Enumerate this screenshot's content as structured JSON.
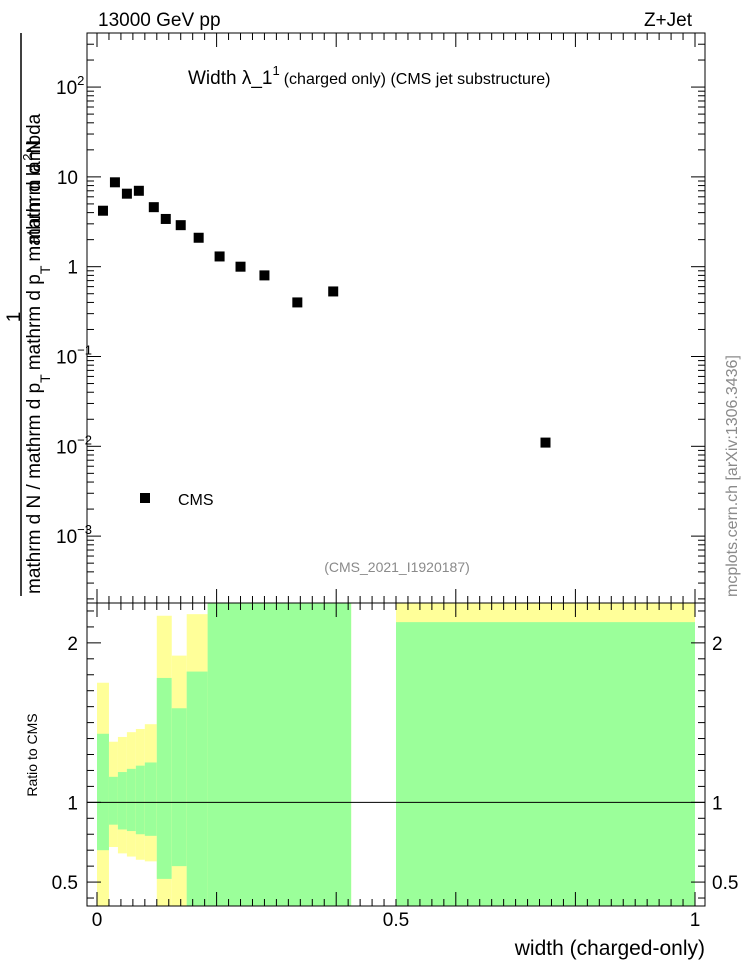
{
  "header": {
    "left": "13000 GeV pp",
    "right": "Z+Jet"
  },
  "chart_data": {
    "type": "scatter",
    "title": "Width λ_1¹ (charged only) (CMS jet substructure)",
    "title_main": "Width λ_1",
    "title_sup": "1",
    "title_rest": "(charged only) (CMS jet substructure)",
    "analysis_id": "(CMS_2021_I1920187)",
    "side_label": "mcplots.cern.ch [arXiv:1306.3436]",
    "ylabel_parts": {
      "one": "1",
      "denom_a": "mathrm d N / mathrm d p",
      "denom_b": "T",
      "numer_a": "mathrm d",
      "numer_sup": "2",
      "numer_b": "N",
      "numer_c": "mathrm d p",
      "numer_d": "T",
      "numer_e": "mathrm d lambda"
    },
    "xlabel": "width (charged-only)",
    "xlim": [
      0,
      1
    ],
    "ylim_log": [
      0.00018,
      400
    ],
    "y_scale": "log",
    "x_ticks": [
      "0",
      "0.5",
      "1"
    ],
    "y_ticks": [
      {
        "value": 100,
        "base": "10",
        "exp": "2"
      },
      {
        "value": 10,
        "base": "10",
        "exp": ""
      },
      {
        "value": 1,
        "base": "1",
        "exp": ""
      },
      {
        "value": 0.1,
        "base": "10",
        "exp": "−1"
      },
      {
        "value": 0.01,
        "base": "10",
        "exp": "−2"
      },
      {
        "value": 0.001,
        "base": "10",
        "exp": "−3"
      }
    ],
    "legend": {
      "label": "CMS",
      "placement": "bottom-left"
    },
    "series": [
      {
        "name": "CMS",
        "marker": "square",
        "x": [
          0.01,
          0.03,
          0.05,
          0.07,
          0.095,
          0.115,
          0.14,
          0.17,
          0.205,
          0.24,
          0.28,
          0.335,
          0.395,
          0.75
        ],
        "y": [
          4.2,
          8.7,
          6.5,
          7.0,
          4.6,
          3.4,
          2.9,
          2.1,
          1.3,
          1.0,
          0.8,
          0.4,
          0.53,
          0.011
        ]
      }
    ],
    "ratio": {
      "ylabel": "Ratio to CMS",
      "ylim": [
        0.35,
        2.25
      ],
      "ticks": [
        "0.5",
        "1",
        "2"
      ],
      "tick_values": [
        0.5,
        1,
        2
      ],
      "reference": 1,
      "colors": {
        "inner": "#9bff9a",
        "outer": "#ffff99",
        "line": "#000000"
      },
      "bands": [
        {
          "x0": 0.0,
          "x1": 0.02,
          "g_lo": 0.7,
          "g_hi": 1.43,
          "y_lo": 0.35,
          "y_hi": 1.75
        },
        {
          "x0": 0.02,
          "x1": 0.035,
          "g_lo": 0.86,
          "g_hi": 1.16,
          "y_lo": 0.72,
          "y_hi": 1.38
        },
        {
          "x0": 0.035,
          "x1": 0.05,
          "g_lo": 0.83,
          "g_hi": 1.19,
          "y_lo": 0.68,
          "y_hi": 1.41
        },
        {
          "x0": 0.05,
          "x1": 0.065,
          "g_lo": 0.82,
          "g_hi": 1.21,
          "y_lo": 0.66,
          "y_hi": 1.44
        },
        {
          "x0": 0.065,
          "x1": 0.08,
          "g_lo": 0.8,
          "g_hi": 1.23,
          "y_lo": 0.64,
          "y_hi": 1.46
        },
        {
          "x0": 0.08,
          "x1": 0.1,
          "g_lo": 0.79,
          "g_hi": 1.25,
          "y_lo": 0.63,
          "y_hi": 1.49
        },
        {
          "x0": 0.1,
          "x1": 0.125,
          "g_lo": 0.52,
          "g_hi": 1.78,
          "y_lo": 0.35,
          "y_hi": 2.17
        },
        {
          "x0": 0.125,
          "x1": 0.15,
          "g_lo": 0.6,
          "g_hi": 1.59,
          "y_lo": 0.35,
          "y_hi": 1.92
        },
        {
          "x0": 0.15,
          "x1": 0.185,
          "g_lo": 0.35,
          "g_hi": 1.82,
          "y_lo": 0.35,
          "y_hi": 2.18
        },
        {
          "x0": 0.185,
          "x1": 0.425,
          "g_lo": 0.35,
          "g_hi": 2.25,
          "y_lo": 0.35,
          "y_hi": 2.25
        },
        {
          "x0": 0.5,
          "x1": 1.0,
          "g_lo": 0.35,
          "g_hi": 2.13,
          "y_lo": 0.35,
          "y_hi": 2.25
        }
      ]
    }
  }
}
